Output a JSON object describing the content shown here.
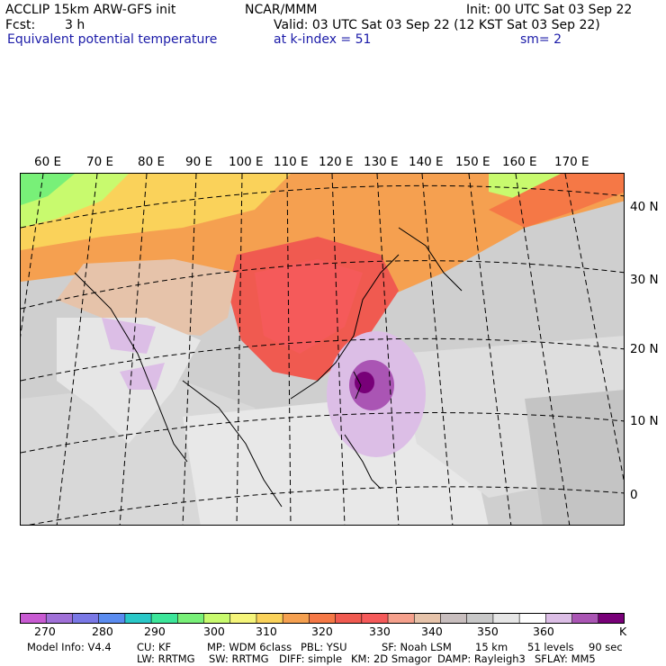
{
  "header": {
    "model_title": "ACCLIP 15km ARW-GFS init",
    "center": "NCAR/MMM",
    "init": "Init: 00 UTC Sat 03 Sep 22",
    "fcst_label": "Fcst:",
    "fcst_value": "3 h",
    "valid": "Valid: 03 UTC Sat 03 Sep 22 (12 KST Sat 03 Sep 22)",
    "field_name": "Equivalent potential temperature",
    "level": "at k-index =  51",
    "smoothing": "sm= 2"
  },
  "map": {
    "lon_labels": [
      "60 E",
      "70 E",
      "80 E",
      "90 E",
      "100 E",
      "110 E",
      "120 E",
      "130 E",
      "140 E",
      "150 E",
      "160 E",
      "170 E"
    ],
    "lat_labels": [
      "40 N",
      "30 N",
      "20 N",
      "10 N",
      "0"
    ]
  },
  "colorbar": {
    "colors": [
      "#c85ad2",
      "#a070d8",
      "#7a78e6",
      "#5a8cf0",
      "#2ac8c8",
      "#3ce69a",
      "#78f078",
      "#c8fa6e",
      "#f5f57a",
      "#fad25a",
      "#f5a050",
      "#f57846",
      "#f05a50",
      "#f55a5a",
      "#f5a08c",
      "#e6c3aa",
      "#c8bebe",
      "#c8c8c8",
      "#e6e6e6",
      "#ffffff",
      "#dcbee6",
      "#aa55b4",
      "#780078"
    ],
    "tick_labels": [
      "270",
      "280",
      "290",
      "300",
      "310",
      "320",
      "330",
      "340",
      "350",
      "360"
    ],
    "unit": "K"
  },
  "footer": {
    "line1": [
      {
        "label": "Model Info: V4.4"
      },
      {
        "label": "CU: KF"
      },
      {
        "label": "MP: WDM 6class"
      },
      {
        "label": "PBL: YSU"
      },
      {
        "label": "SF: Noah LSM"
      },
      {
        "label": "15 km"
      },
      {
        "label": "51 levels"
      },
      {
        "label": "90 sec"
      }
    ],
    "line2": [
      {
        "label": "LW: RRTMG"
      },
      {
        "label": "SW: RRTMG"
      },
      {
        "label": "DIFF: simple"
      },
      {
        "label": "KM: 2D Smagor"
      },
      {
        "label": "DAMP: Rayleigh3"
      },
      {
        "label": "SFLAY: MM5"
      }
    ]
  }
}
